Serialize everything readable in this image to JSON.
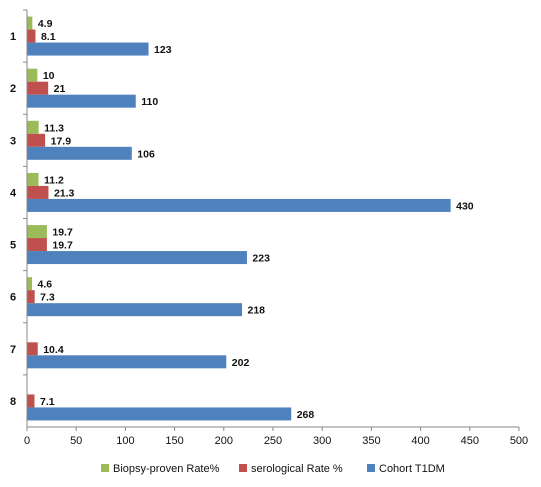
{
  "chart_data": {
    "type": "bar",
    "orientation": "horizontal",
    "categories": [
      "1",
      "2",
      "3",
      "4",
      "5",
      "6",
      "7",
      "8"
    ],
    "series": [
      {
        "name": "Biopsy-proven Rate%",
        "color": "#9BBB59",
        "values": [
          4.9,
          10,
          11.3,
          11.2,
          19.7,
          4.6,
          null,
          null
        ],
        "labels": [
          "4.9",
          "10",
          "11.3",
          "11.2",
          "19.7",
          "4.6",
          "",
          ""
        ]
      },
      {
        "name": "serological Rate %",
        "color": "#C0504D",
        "values": [
          8.1,
          21,
          17.9,
          21.3,
          19.7,
          7.3,
          10.4,
          7.1
        ],
        "labels": [
          "8.1",
          "21",
          "17.9",
          "21.3",
          "19.7",
          "7.3",
          "10.4",
          "7.1"
        ]
      },
      {
        "name": "Cohort T1DM",
        "color": "#4F81BD",
        "values": [
          123,
          110,
          106,
          430,
          223,
          218,
          202,
          268
        ],
        "labels": [
          "123",
          "110",
          "106",
          "430",
          "223",
          "218",
          "202",
          "268"
        ]
      }
    ],
    "xlim": [
      0,
      500
    ],
    "xticks": [
      "0",
      "50",
      "100",
      "150",
      "200",
      "250",
      "300",
      "350",
      "400",
      "450",
      "500"
    ],
    "grid": false,
    "legend_position": "bottom",
    "title": "",
    "xlabel": "",
    "ylabel": ""
  }
}
